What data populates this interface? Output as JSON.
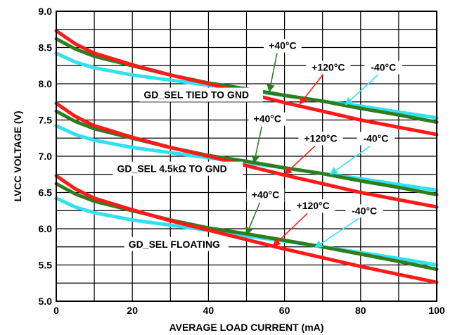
{
  "chart_data": {
    "type": "line",
    "xlabel": "AVERAGE LOAD CURRENT (mA)",
    "ylabel": "LVCC VOLTAGE (V)",
    "xlim": [
      0,
      100
    ],
    "ylim": [
      5.0,
      9.0
    ],
    "x_ticks": [
      "0",
      "20",
      "40",
      "60",
      "80",
      "100"
    ],
    "y_ticks": [
      "5.0",
      "5.5",
      "6.0",
      "6.5",
      "7.0",
      "7.5",
      "8.0",
      "8.5",
      "9.0"
    ],
    "grid": true,
    "colors": {
      "plus40": "#2e7d1f",
      "plus120": "#ff1a1a",
      "minus40": "#33e0f0"
    },
    "groups": [
      {
        "label": "GD_SEL TIED TO GND",
        "series": [
          {
            "name": "+40°C",
            "x": [
              0,
              5,
              10,
              20,
              30,
              40,
              50,
              60,
              70,
              80,
              90,
              100
            ],
            "y": [
              8.62,
              8.48,
              8.38,
              8.25,
              8.12,
              8.01,
              7.93,
              7.84,
              7.76,
              7.66,
              7.57,
              7.47
            ]
          },
          {
            "name": "+120°C",
            "x": [
              0,
              5,
              10,
              20,
              30,
              40,
              50,
              60,
              70,
              80,
              90,
              100
            ],
            "y": [
              8.73,
              8.55,
              8.42,
              8.26,
              8.12,
              8.0,
              7.87,
              7.74,
              7.62,
              7.5,
              7.4,
              7.3
            ]
          },
          {
            "name": "-40°C",
            "x": [
              0,
              5,
              10,
              20,
              30,
              40,
              50,
              60,
              70,
              80,
              90,
              100
            ],
            "y": [
              8.42,
              8.3,
              8.22,
              8.12,
              8.05,
              7.98,
              7.91,
              7.84,
              7.76,
              7.69,
              7.61,
              7.53
            ]
          }
        ]
      },
      {
        "label": "GD_SEL 4.5kΩ TO GND",
        "series": [
          {
            "name": "+40°C",
            "x": [
              0,
              5,
              10,
              20,
              30,
              40,
              50,
              60,
              70,
              80,
              90,
              100
            ],
            "y": [
              7.62,
              7.48,
              7.38,
              7.25,
              7.12,
              7.01,
              6.93,
              6.84,
              6.76,
              6.66,
              6.57,
              6.47
            ]
          },
          {
            "name": "+120°C",
            "x": [
              0,
              5,
              10,
              20,
              30,
              40,
              50,
              60,
              70,
              80,
              90,
              100
            ],
            "y": [
              7.73,
              7.55,
              7.42,
              7.26,
              7.12,
              7.0,
              6.87,
              6.74,
              6.62,
              6.5,
              6.4,
              6.3
            ]
          },
          {
            "name": "-40°C",
            "x": [
              0,
              5,
              10,
              20,
              30,
              40,
              50,
              60,
              70,
              80,
              90,
              100
            ],
            "y": [
              7.42,
              7.3,
              7.22,
              7.12,
              7.05,
              6.98,
              6.91,
              6.84,
              6.76,
              6.69,
              6.61,
              6.53
            ]
          }
        ]
      },
      {
        "label": "GD_SEL FLOATING",
        "series": [
          {
            "name": "+40°C",
            "x": [
              0,
              5,
              10,
              20,
              30,
              40,
              50,
              60,
              70,
              80,
              90,
              100
            ],
            "y": [
              6.62,
              6.48,
              6.38,
              6.25,
              6.12,
              6.01,
              5.93,
              5.84,
              5.75,
              5.65,
              5.55,
              5.44
            ]
          },
          {
            "name": "+120°C",
            "x": [
              0,
              5,
              10,
              20,
              30,
              40,
              50,
              60,
              70,
              80,
              90,
              100
            ],
            "y": [
              6.73,
              6.55,
              6.42,
              6.26,
              6.11,
              5.98,
              5.85,
              5.72,
              5.6,
              5.48,
              5.37,
              5.26
            ]
          },
          {
            "name": "-40°C",
            "x": [
              0,
              5,
              10,
              20,
              30,
              40,
              50,
              60,
              70,
              80,
              90,
              100
            ],
            "y": [
              6.42,
              6.3,
              6.22,
              6.12,
              6.05,
              5.98,
              5.9,
              5.83,
              5.75,
              5.67,
              5.59,
              5.5
            ]
          }
        ]
      }
    ],
    "annotations": [
      {
        "text": "+40°C",
        "x": 59.5,
        "y": 8.48,
        "target": [
          56,
          7.89
        ],
        "color": "plus40"
      },
      {
        "text": "+120°C",
        "x": 71.5,
        "y": 8.18,
        "target": [
          64,
          7.72
        ],
        "color": "plus120"
      },
      {
        "text": "-40°C",
        "x": 86,
        "y": 8.18,
        "target": [
          76,
          7.71
        ],
        "color": "minus40"
      },
      {
        "text": "+40°C",
        "x": 55.5,
        "y": 7.47,
        "target": [
          52,
          6.91
        ],
        "color": "plus40"
      },
      {
        "text": "+120°C",
        "x": 69.5,
        "y": 7.2,
        "target": [
          60,
          6.75
        ],
        "color": "plus120"
      },
      {
        "text": "-40°C",
        "x": 84,
        "y": 7.2,
        "target": [
          72,
          6.75
        ],
        "color": "minus40"
      },
      {
        "text": "+40°C",
        "x": 55,
        "y": 6.42,
        "target": [
          50,
          5.92
        ],
        "color": "plus40"
      },
      {
        "text": "+120°C",
        "x": 67.5,
        "y": 6.27,
        "target": [
          57,
          5.76
        ],
        "color": "plus120"
      },
      {
        "text": "-40°C",
        "x": 81,
        "y": 6.2,
        "target": [
          68,
          5.74
        ],
        "color": "minus40"
      }
    ]
  }
}
